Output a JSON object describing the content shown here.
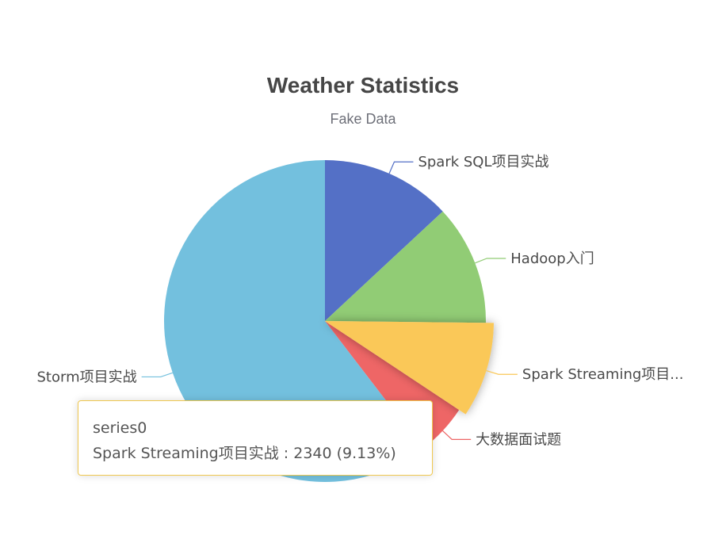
{
  "chart_data": {
    "type": "pie",
    "title": "Weather Statistics",
    "subtitle": "Fake Data",
    "series": [
      {
        "name": "series0",
        "data": [
          {
            "name": "Spark SQL项目实战",
            "value": 3350,
            "color": "#5470c6"
          },
          {
            "name": "Hadoop入门",
            "value": 3100,
            "color": "#91cc75"
          },
          {
            "name": "Spark Streaming项目实战",
            "value": 2340,
            "color": "#fac858"
          },
          {
            "name": "大数据面试题",
            "value": 1350,
            "color": "#ee6666"
          },
          {
            "name": "Storm项目实战",
            "value": 15480,
            "color": "#73c0de"
          }
        ]
      }
    ],
    "labels_display": [
      "Spark SQL项目实战",
      "Hadoop入门",
      "Spark Streaming项目...",
      "大数据面试题",
      "Storm项目实战"
    ],
    "highlighted_slice": "Spark Streaming项目实战"
  },
  "tooltip": {
    "series_name": "series0",
    "text": "Spark Streaming项目实战 : 2340 (9.13%)"
  }
}
